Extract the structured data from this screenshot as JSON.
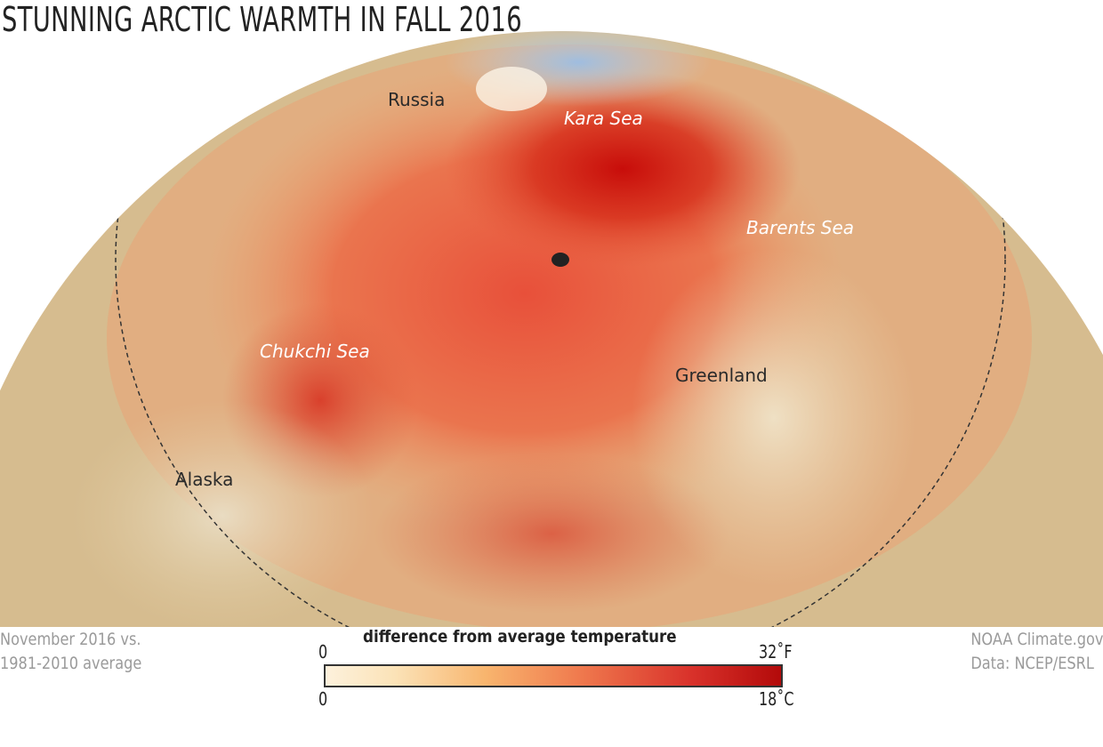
{
  "title": "STUNNING ARCTIC WARMTH IN FALL 2016",
  "map": {
    "labels": {
      "russia": "Russia",
      "kara_sea": "Kara Sea",
      "barents_sea": "Barents Sea",
      "chukchi_sea": "Chukchi Sea",
      "greenland": "Greenland",
      "alaska": "Alaska"
    },
    "colors": {
      "land_base": "#d8bf93",
      "warm_max": "#c40f0a",
      "cool": "#a9c3dc"
    }
  },
  "footer": {
    "left_line1": "November 2016 vs.",
    "left_line2": "1981-2010 average",
    "right_line1": "NOAA Climate.gov",
    "right_line2": "Data: NCEP/ESRL"
  },
  "legend": {
    "title": "difference from average temperature",
    "f_min": "0",
    "f_max": "32˚F",
    "c_min": "0",
    "c_max": "18˚C",
    "colors": [
      "#fdf1dc",
      "#f8b56e",
      "#f07c4f",
      "#d9322b",
      "#b30a0a"
    ]
  }
}
